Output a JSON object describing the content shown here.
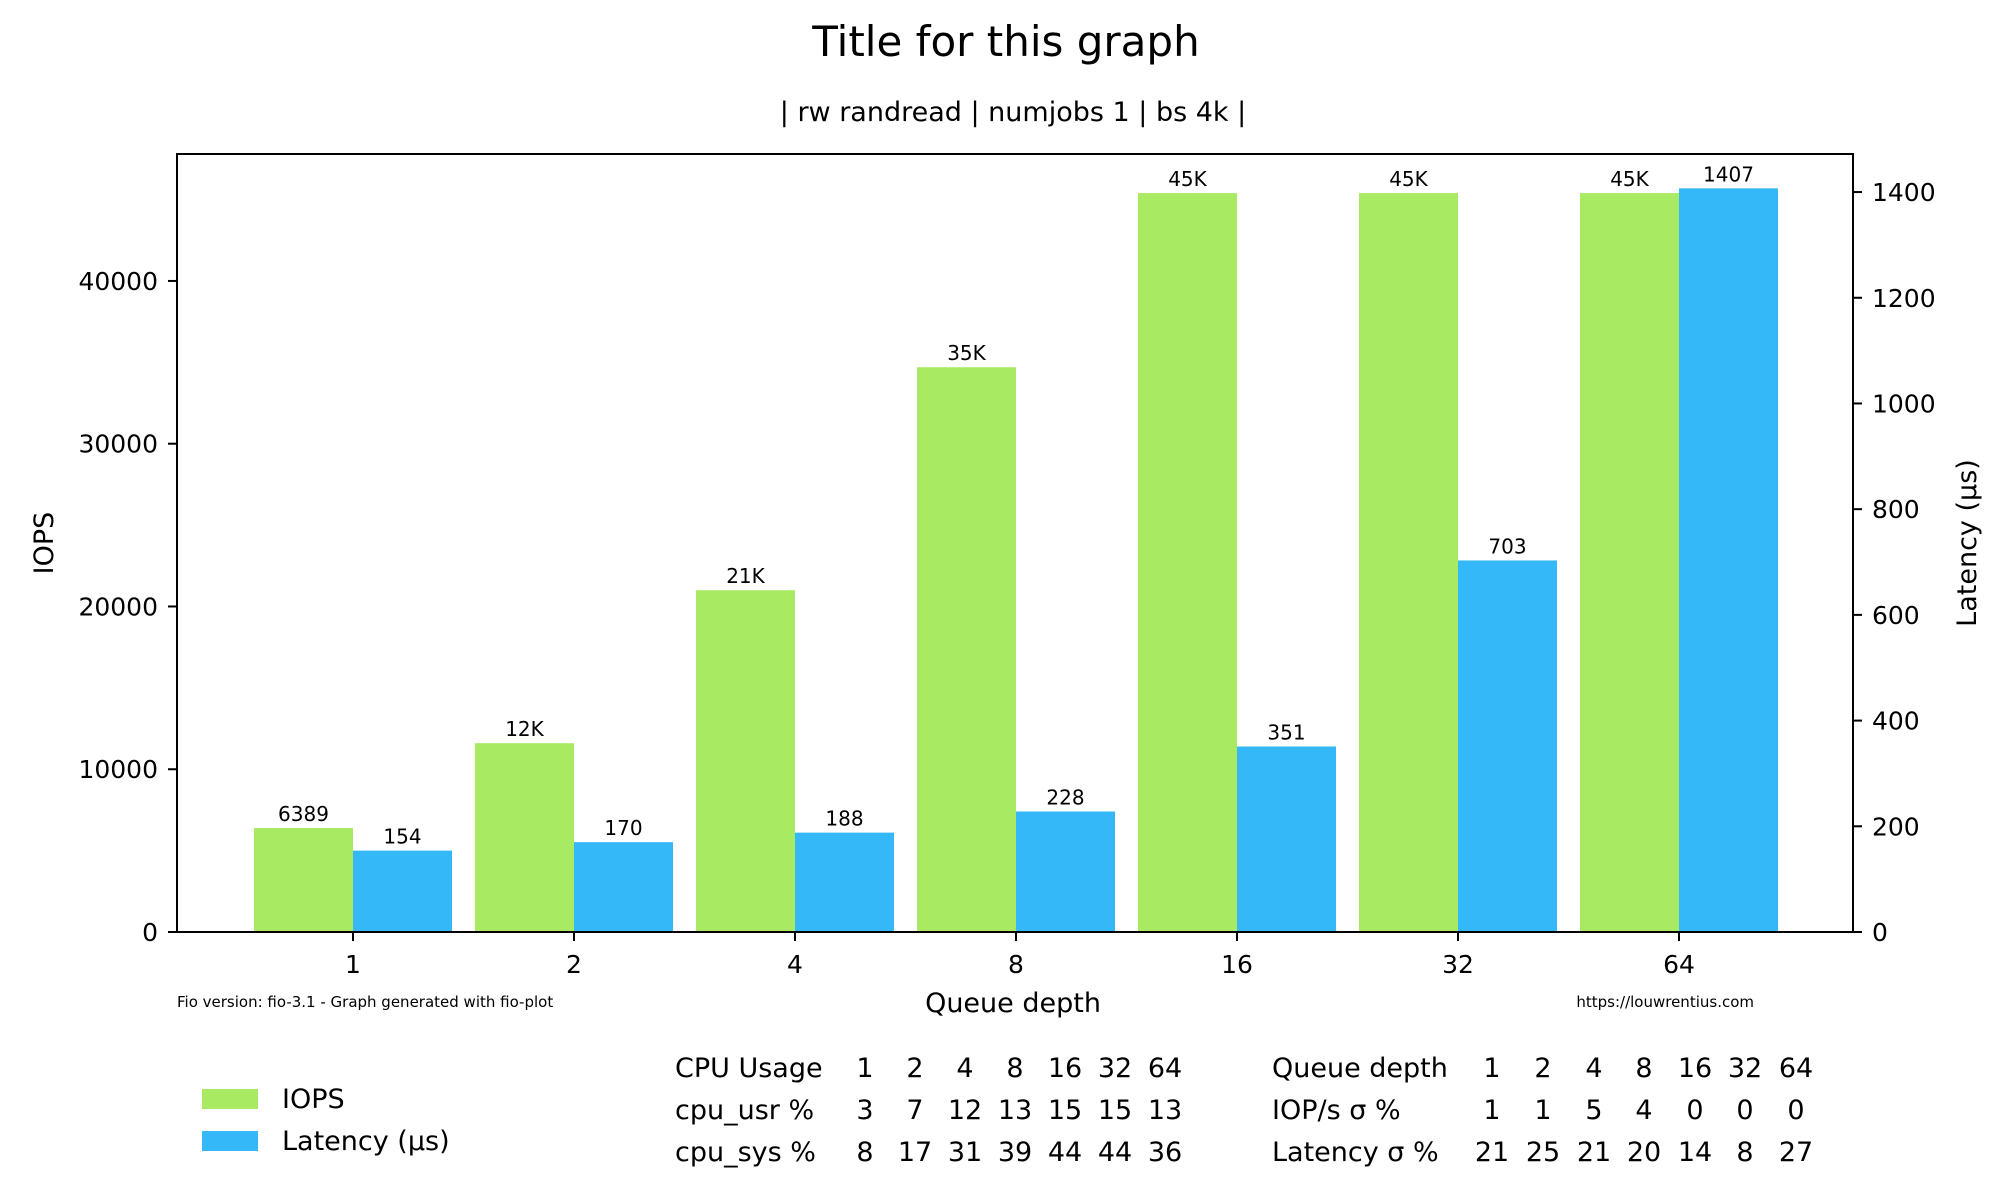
{
  "chart_data": {
    "type": "bar",
    "title": "Title for this graph",
    "subtitle": "| rw randread | numjobs 1 | bs 4k |",
    "xlabel": "Queue depth",
    "ylabel": "IOPS",
    "y2label": "Latency (µs)",
    "categories": [
      "1",
      "2",
      "4",
      "8",
      "16",
      "32",
      "64"
    ],
    "ylim": [
      0,
      47800
    ],
    "y2lim": [
      0,
      1472
    ],
    "yticks": [
      0,
      10000,
      20000,
      30000,
      40000
    ],
    "y2ticks": [
      0,
      200,
      400,
      600,
      800,
      1000,
      1200,
      1400
    ],
    "grid": false,
    "series": [
      {
        "name": "IOPS",
        "axis": "left",
        "color": "#a8eb63",
        "values": [
          6389,
          11600,
          21000,
          34700,
          45400,
          45400,
          45400
        ],
        "labels": [
          "6389",
          "12K",
          "21K",
          "35K",
          "45K",
          "45K",
          "45K"
        ]
      },
      {
        "name": "Latency (µs)",
        "axis": "right",
        "color": "#35b8f8",
        "values": [
          154,
          170,
          188,
          228,
          351,
          703,
          1407
        ],
        "labels": [
          "154",
          "170",
          "188",
          "228",
          "351",
          "703",
          "1407"
        ]
      }
    ],
    "footnote_left": "Fio version: fio-3.1 - Graph generated with fio-plot",
    "footnote_right": "https://louwrentius.com",
    "legend_position": "bottom-left",
    "cpu_table": {
      "headers": [
        "CPU Usage",
        "1",
        "2",
        "4",
        "8",
        "16",
        "32",
        "64"
      ],
      "rows": [
        [
          "cpu_usr %",
          "3",
          "7",
          "12",
          "13",
          "15",
          "15",
          "13"
        ],
        [
          "cpu_sys %",
          "8",
          "17",
          "31",
          "39",
          "44",
          "44",
          "36"
        ]
      ]
    },
    "stddev_table": {
      "headers": [
        "Queue depth",
        "1",
        "2",
        "4",
        "8",
        "16",
        "32",
        "64"
      ],
      "rows": [
        [
          "IOP/s σ %",
          "1",
          "1",
          "5",
          "4",
          "0",
          "0",
          "0"
        ],
        [
          "Latency σ %",
          "21",
          "25",
          "21",
          "20",
          "14",
          "8",
          "27"
        ]
      ]
    }
  }
}
